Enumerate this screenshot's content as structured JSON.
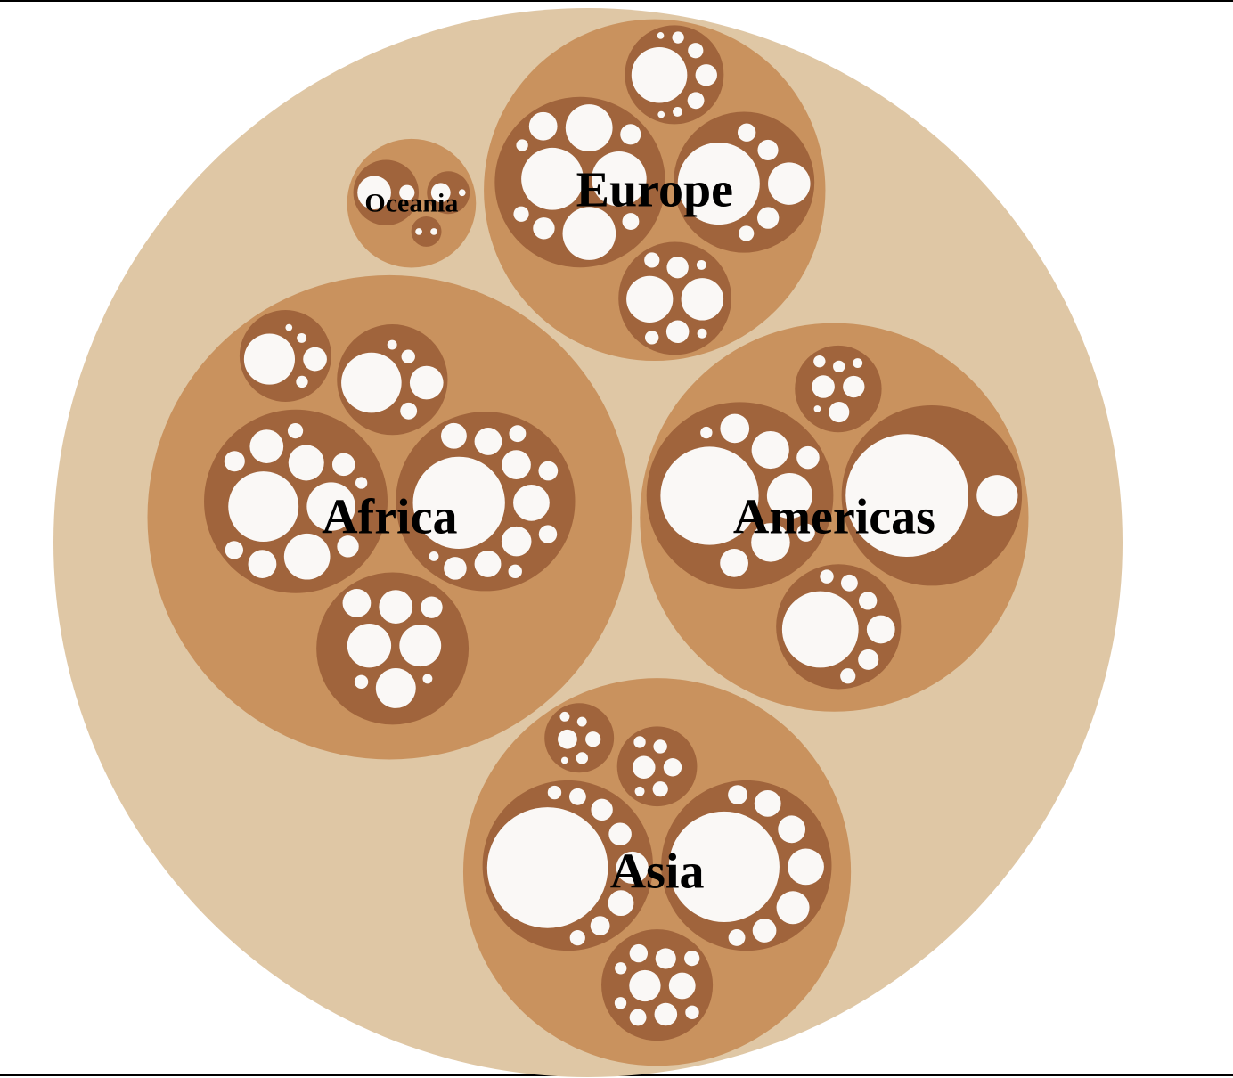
{
  "colors": {
    "root": "#dfc7a5",
    "region": "#c9925e",
    "subregion": "#a0643c",
    "country": "#faf8f6",
    "label": "#000000"
  },
  "chart_data": {
    "type": "circle-packing",
    "title": "",
    "regions": [
      {
        "name": "Asia",
        "subregions": [
          {
            "countries": [
              260,
              28,
              23,
              16,
              15,
              12,
              8,
              6
            ]
          },
          {
            "countries": [
              310,
              22,
              14,
              11,
              10,
              8,
              6,
              5,
              4
            ]
          },
          {
            "countries": [
              21,
              15,
              11,
              9,
              7,
              6,
              5,
              4,
              3,
              3
            ]
          },
          {
            "countries": [
              11,
              7,
              5,
              4,
              3,
              2
            ]
          },
          {
            "countries": [
              8,
              5,
              3,
              2,
              2,
              1
            ]
          }
        ]
      },
      {
        "name": "Europe",
        "subregions": [
          {
            "countries": [
              82,
              64,
              60,
              47,
              17,
              10,
              9,
              6,
              5,
              3
            ]
          },
          {
            "countries": [
              46,
              38,
              11,
              10,
              5,
              4,
              2,
              2
            ]
          },
          {
            "countries": [
              66,
              10,
              6,
              5,
              3,
              2,
              1,
              1
            ]
          },
          {
            "countries": [
              143,
              38,
              10,
              9,
              7,
              5
            ]
          }
        ]
      },
      {
        "name": "Africa",
        "subregions": [
          {
            "countries": [
              105,
              50,
              45,
              27,
              24,
              17,
              11,
              10,
              9,
              7,
              5,
              3
            ]
          },
          {
            "countries": [
              180,
              28,
              19,
              18,
              16,
              15,
              14,
              11,
              8,
              7,
              6,
              4,
              2
            ]
          },
          {
            "countries": [
              41,
              37,
              34,
              24,
              17,
              10,
              4,
              2
            ]
          },
          {
            "countries": [
              55,
              12,
              3,
              2,
              1
            ]
          },
          {
            "countries": [
              77,
              24,
              6,
              4,
              2
            ]
          }
        ]
      },
      {
        "name": "Americas",
        "subregions": [
          {
            "countries": [
              205,
              44,
              32,
              30,
              18,
              17,
              11,
              7,
              3
            ]
          },
          {
            "countries": [
              320,
              36
            ]
          },
          {
            "countries": [
              124,
              17,
              9,
              7,
              6,
              5,
              4
            ]
          },
          {
            "countries": [
              11,
              10,
              9,
              3,
              3,
              2,
              1
            ]
          }
        ]
      },
      {
        "name": "Oceania",
        "subregions": [
          {
            "countries": [
              24,
              5
            ]
          },
          {
            "countries": [
              8,
              1
            ]
          },
          {
            "countries": [
              1,
              1
            ]
          }
        ]
      }
    ]
  }
}
